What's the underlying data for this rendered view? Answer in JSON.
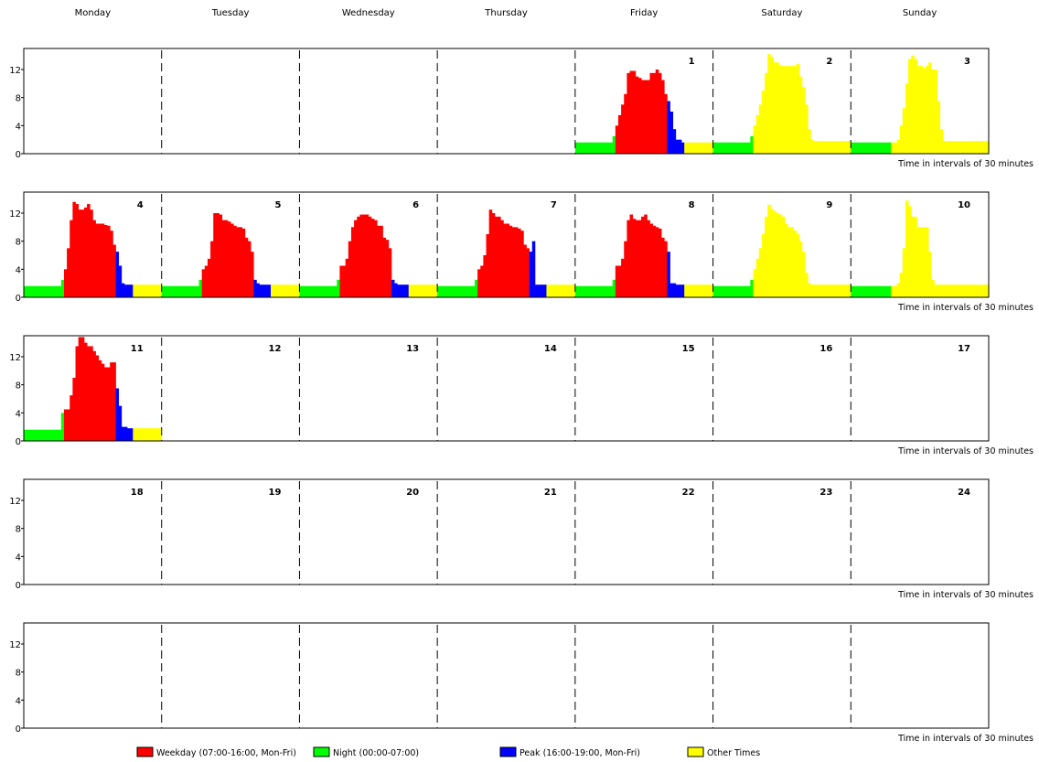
{
  "chart_data": {
    "type": "bar",
    "day_names": [
      "Monday",
      "Tuesday",
      "Wednesday",
      "Thursday",
      "Friday",
      "Saturday",
      "Sunday"
    ],
    "x_caption": "Time in intervals of 30 minutes",
    "y_ticks": [
      0,
      4,
      8,
      12
    ],
    "ylim": [
      0,
      15
    ],
    "intervals_per_day": 48,
    "weeks": [
      [
        null,
        null,
        null,
        null,
        1,
        2,
        3
      ],
      [
        4,
        5,
        6,
        7,
        8,
        9,
        10
      ],
      [
        11,
        12,
        13,
        14,
        15,
        16,
        17
      ],
      [
        18,
        19,
        20,
        21,
        22,
        23,
        24
      ],
      [
        null,
        null,
        null,
        null,
        null,
        null,
        null
      ]
    ],
    "categories": {
      "weekday": {
        "label": "Weekday (07:00-16:00, Mon-Fri)",
        "color": "#ff0000"
      },
      "night": {
        "label": "Night (00:00-07:00)",
        "color": "#00ff00"
      },
      "peak": {
        "label": "Peak (16:00-19:00, Mon-Fri)",
        "color": "#0000ff"
      },
      "other": {
        "label": "Other Times",
        "color": "#ffff00"
      }
    },
    "legend_order": [
      "weekday",
      "night",
      "peak",
      "other"
    ],
    "series": [
      {
        "date": 1,
        "values": [
          1.6,
          1.6,
          1.6,
          1.6,
          1.6,
          1.6,
          1.6,
          1.6,
          1.6,
          1.6,
          1.6,
          1.6,
          1.6,
          2.5,
          4,
          5.5,
          7,
          8.5,
          11.5,
          11.8,
          11.8,
          11,
          10.8,
          10.5,
          10.5,
          10.5,
          11.5,
          11.5,
          12,
          11.5,
          10.5,
          8.5,
          7.5,
          6,
          3.5,
          2,
          2,
          1.6,
          1.6,
          1.6,
          1.6,
          1.6,
          1.6,
          1.6,
          1.6,
          1.6,
          1.6,
          1.6
        ]
      },
      {
        "date": 2,
        "values": [
          1.6,
          1.6,
          1.6,
          1.6,
          1.6,
          1.6,
          1.6,
          1.6,
          1.6,
          1.6,
          1.6,
          1.6,
          1.6,
          2.5,
          4,
          5.5,
          7,
          9,
          11.5,
          14.2,
          13.8,
          13,
          13,
          12.6,
          12.5,
          12.5,
          12.5,
          12.5,
          12.5,
          12.8,
          11,
          9.5,
          7,
          3.5,
          2,
          1.8,
          1.8,
          1.8,
          1.8,
          1.8,
          1.8,
          1.8,
          1.8,
          1.8,
          1.8,
          1.8,
          1.8,
          1.8
        ]
      },
      {
        "date": 3,
        "values": [
          1.6,
          1.6,
          1.6,
          1.6,
          1.6,
          1.6,
          1.6,
          1.6,
          1.6,
          1.6,
          1.6,
          1.6,
          1.6,
          1.6,
          1.6,
          1.6,
          2,
          4,
          6.5,
          10,
          13.5,
          14,
          13.5,
          12.5,
          12.5,
          12.2,
          12.5,
          13,
          12,
          12,
          7.5,
          3.5,
          1.8,
          1.8,
          1.8,
          1.8,
          1.8,
          1.8,
          1.8,
          1.8,
          1.8,
          1.8,
          1.8,
          1.8,
          1.8,
          1.8,
          1.8,
          1.8
        ]
      },
      {
        "date": 4,
        "values": [
          1.6,
          1.6,
          1.6,
          1.6,
          1.6,
          1.6,
          1.6,
          1.6,
          1.6,
          1.6,
          1.6,
          1.6,
          1.6,
          2.5,
          4,
          7,
          11,
          13.6,
          13.3,
          12.5,
          12.5,
          12.8,
          13.3,
          12.5,
          11,
          10.5,
          10.5,
          10.5,
          10.3,
          10.2,
          9.5,
          7.5,
          6.5,
          4.5,
          2,
          1.8,
          1.8,
          1.8,
          1.8,
          1.8,
          1.8,
          1.8,
          1.8,
          1.8,
          1.8,
          1.8,
          1.8,
          1.8
        ]
      },
      {
        "date": 5,
        "values": [
          1.6,
          1.6,
          1.6,
          1.6,
          1.6,
          1.6,
          1.6,
          1.6,
          1.6,
          1.6,
          1.6,
          1.6,
          1.6,
          2.5,
          4,
          4.5,
          5.5,
          8,
          12,
          12,
          11.8,
          11,
          11,
          10.8,
          10.5,
          10.2,
          10,
          10,
          9.8,
          8.5,
          8,
          6.5,
          2.5,
          2,
          1.8,
          1.8,
          1.8,
          1.8,
          1.8,
          1.8,
          1.8,
          1.8,
          1.8,
          1.8,
          1.8,
          1.8,
          1.8,
          1.8
        ]
      },
      {
        "date": 6,
        "values": [
          1.6,
          1.6,
          1.6,
          1.6,
          1.6,
          1.6,
          1.6,
          1.6,
          1.6,
          1.6,
          1.6,
          1.6,
          1.6,
          2.5,
          4.5,
          4.5,
          5.5,
          8,
          10,
          11,
          11.5,
          11.8,
          11.8,
          11.8,
          11.5,
          11.2,
          11,
          10.2,
          10.2,
          8.5,
          8.2,
          7,
          2.5,
          2,
          1.8,
          1.8,
          1.8,
          1.8,
          1.8,
          1.8,
          1.8,
          1.8,
          1.8,
          1.8,
          1.8,
          1.8,
          1.8,
          1.8
        ]
      },
      {
        "date": 7,
        "values": [
          1.6,
          1.6,
          1.6,
          1.6,
          1.6,
          1.6,
          1.6,
          1.6,
          1.6,
          1.6,
          1.6,
          1.6,
          1.6,
          2.5,
          4,
          4.5,
          6,
          9,
          12.5,
          12,
          11.5,
          11.5,
          11,
          10.5,
          10.5,
          10.2,
          10,
          10,
          9.8,
          9.5,
          7.5,
          7,
          6.5,
          8,
          1.8,
          1.8,
          1.8,
          1.8,
          1.8,
          1.8,
          1.8,
          1.8,
          1.8,
          1.8,
          1.8,
          1.8,
          1.8,
          1.8
        ]
      },
      {
        "date": 8,
        "values": [
          1.6,
          1.6,
          1.6,
          1.6,
          1.6,
          1.6,
          1.6,
          1.6,
          1.6,
          1.6,
          1.6,
          1.6,
          1.6,
          2.5,
          4.5,
          4.5,
          5.5,
          8,
          11,
          11.8,
          11.2,
          11,
          11,
          11.5,
          11.8,
          11,
          10.5,
          10.2,
          10,
          9.8,
          8.5,
          8,
          6.5,
          2,
          2,
          1.8,
          1.8,
          1.8,
          1.8,
          1.8,
          1.8,
          1.8,
          1.8,
          1.8,
          1.8,
          1.8,
          1.8,
          1.8
        ]
      },
      {
        "date": 9,
        "values": [
          1.6,
          1.6,
          1.6,
          1.6,
          1.6,
          1.6,
          1.6,
          1.6,
          1.6,
          1.6,
          1.6,
          1.6,
          1.6,
          2.5,
          4,
          5.5,
          7,
          9,
          11.5,
          13.2,
          12.6,
          12.3,
          12,
          11.8,
          11.5,
          10.5,
          10,
          10,
          9.5,
          9,
          8,
          6.5,
          3.5,
          2,
          1.8,
          1.8,
          1.8,
          1.8,
          1.8,
          1.8,
          1.8,
          1.8,
          1.8,
          1.8,
          1.8,
          1.8,
          1.8,
          1.8
        ]
      },
      {
        "date": 10,
        "values": [
          1.6,
          1.6,
          1.6,
          1.6,
          1.6,
          1.6,
          1.6,
          1.6,
          1.6,
          1.6,
          1.6,
          1.6,
          1.6,
          1.6,
          1.6,
          1.6,
          2,
          3.5,
          7,
          13.8,
          13,
          11.5,
          11.5,
          10,
          10,
          10,
          10,
          6.5,
          2.5,
          1.8,
          1.8,
          1.8,
          1.8,
          1.8,
          1.8,
          1.8,
          1.8,
          1.8,
          1.8,
          1.8,
          1.8,
          1.8,
          1.8,
          1.8,
          1.8,
          1.8,
          1.8,
          1.8
        ]
      },
      {
        "date": 11,
        "values": [
          1.6,
          1.6,
          1.6,
          1.6,
          1.6,
          1.6,
          1.6,
          1.6,
          1.6,
          1.6,
          1.6,
          1.6,
          1.6,
          4,
          4.5,
          4.5,
          6.5,
          9,
          13.5,
          14.8,
          14.8,
          14,
          13.5,
          13.5,
          12.8,
          12.2,
          11.5,
          11,
          10.5,
          10.5,
          11.2,
          11.2,
          7.5,
          5,
          2,
          2,
          1.8,
          1.8,
          1.8,
          1.8,
          1.8,
          1.8,
          1.8,
          1.8,
          1.8,
          1.8,
          1.8,
          1.8
        ]
      }
    ]
  }
}
